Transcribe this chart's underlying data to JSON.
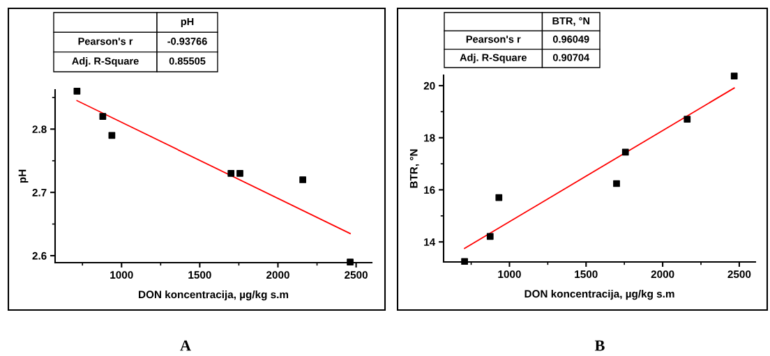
{
  "chart_data": [
    {
      "type": "scatter",
      "xlabel": "DON koncentracija, µg/kg s.m",
      "ylabel": "pH",
      "xlim": [
        575,
        2600
      ],
      "xticks": [
        1000,
        1500,
        2000,
        2500
      ],
      "ylim": [
        2.589,
        2.862
      ],
      "yticks": [
        2.6,
        2.7,
        2.8
      ],
      "grid": false,
      "legend": false,
      "annotations": [
        "pH",
        "Pearson's r",
        "-0.93766",
        "Adj. R-Square",
        "0.85505",
        "A"
      ],
      "series": [
        {
          "marker": "square",
          "color": "#000000",
          "x": [
            715,
            880,
            938,
            1700,
            1757,
            2159,
            2462
          ],
          "values": [
            2.86,
            2.82,
            2.79,
            2.73,
            2.73,
            2.72,
            2.59
          ]
        },
        {
          "type": "line",
          "color": "#ff0000",
          "x": [
            715,
            2462
          ],
          "values": [
            2.845,
            2.635
          ]
        }
      ]
    },
    {
      "type": "scatter",
      "xlabel": "DON koncentracija, µg/kg s.m",
      "ylabel": "BTR, °N",
      "xlim": [
        570,
        2605
      ],
      "xticks": [
        1000,
        1500,
        2000,
        2500
      ],
      "ylim": [
        13.23,
        20.4
      ],
      "yticks": [
        14,
        16,
        18,
        20
      ],
      "grid": false,
      "legend": false,
      "annotations": [
        "BTR, °N",
        "Pearson's r",
        "0.96049",
        "Adj. R-Square",
        "0.90704",
        "B"
      ],
      "series": [
        {
          "marker": "square",
          "color": "#000000",
          "x": [
            707,
            874,
            931,
            1699,
            1757,
            2160,
            2467
          ],
          "values": [
            13.25,
            14.21,
            15.7,
            16.24,
            17.45,
            18.71,
            20.37
          ]
        },
        {
          "type": "line",
          "color": "#ff0000",
          "x": [
            707,
            2467
          ],
          "values": [
            13.75,
            19.91
          ]
        }
      ]
    }
  ]
}
